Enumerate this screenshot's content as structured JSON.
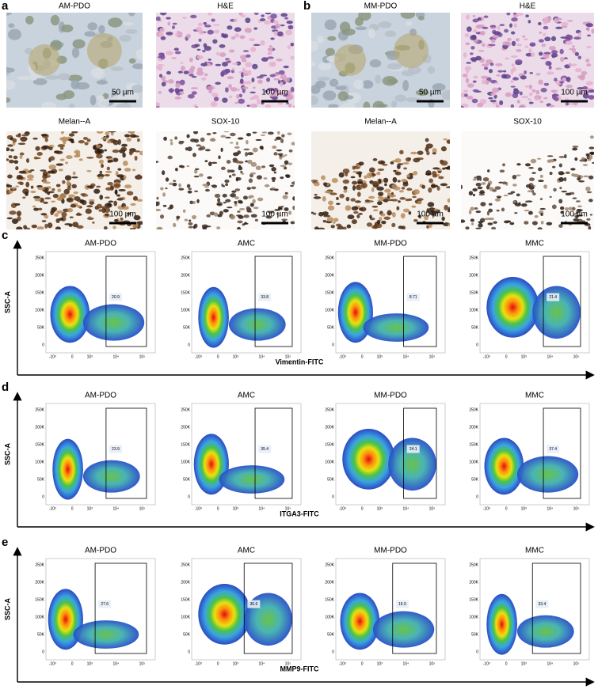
{
  "image_panels": [
    {
      "label": "a",
      "images": [
        {
          "title": "AM-PDO",
          "scale": "50 µm"
        },
        {
          "title": "H&E",
          "scale": "100 µm"
        },
        {
          "title": "Melan--A",
          "scale": "100 µm"
        },
        {
          "title": "SOX-10",
          "scale": "100 µm"
        }
      ]
    },
    {
      "label": "b",
      "images": [
        {
          "title": "MM-PDO",
          "scale": "50 µm"
        },
        {
          "title": "H&E",
          "scale": "100 µm"
        },
        {
          "title": "Melan--A",
          "scale": "100 µm"
        },
        {
          "title": "SOX-10",
          "scale": "100 µm"
        }
      ]
    }
  ],
  "flow_axes": {
    "y_ticks": [
      "250K",
      "200K",
      "150K",
      "100K",
      "50K",
      "0"
    ],
    "x_ticks": [
      "-10³",
      "0",
      "10³",
      "10⁴",
      "10⁵"
    ]
  },
  "flow_panels": [
    {
      "label": "c",
      "y_label": "SSC-A",
      "x_label": "Vimentin-FITC",
      "plots": [
        {
          "title": "AM-PDO",
          "gate": "20.9"
        },
        {
          "title": "AMC",
          "gate": "33.8"
        },
        {
          "title": "MM-PDO",
          "gate": "8.71"
        },
        {
          "title": "MMC",
          "gate": "21.4"
        }
      ]
    },
    {
      "label": "d",
      "y_label": "SSC-A",
      "x_label": "ITGA3-FITC",
      "plots": [
        {
          "title": "AM-PDO",
          "gate": "23.9"
        },
        {
          "title": "AMC",
          "gate": "35.4"
        },
        {
          "title": "MM-PDO",
          "gate": "24.1"
        },
        {
          "title": "MMC",
          "gate": "37.4"
        }
      ]
    },
    {
      "label": "e",
      "y_label": "SSC-A",
      "x_label": "MMP9-FITC",
      "plots": [
        {
          "title": "AM-PDO",
          "gate": "27.6"
        },
        {
          "title": "AMC",
          "gate": "36.6"
        },
        {
          "title": "MM-PDO",
          "gate": "16.9"
        },
        {
          "title": "MMC",
          "gate": "33.4"
        }
      ]
    }
  ]
}
